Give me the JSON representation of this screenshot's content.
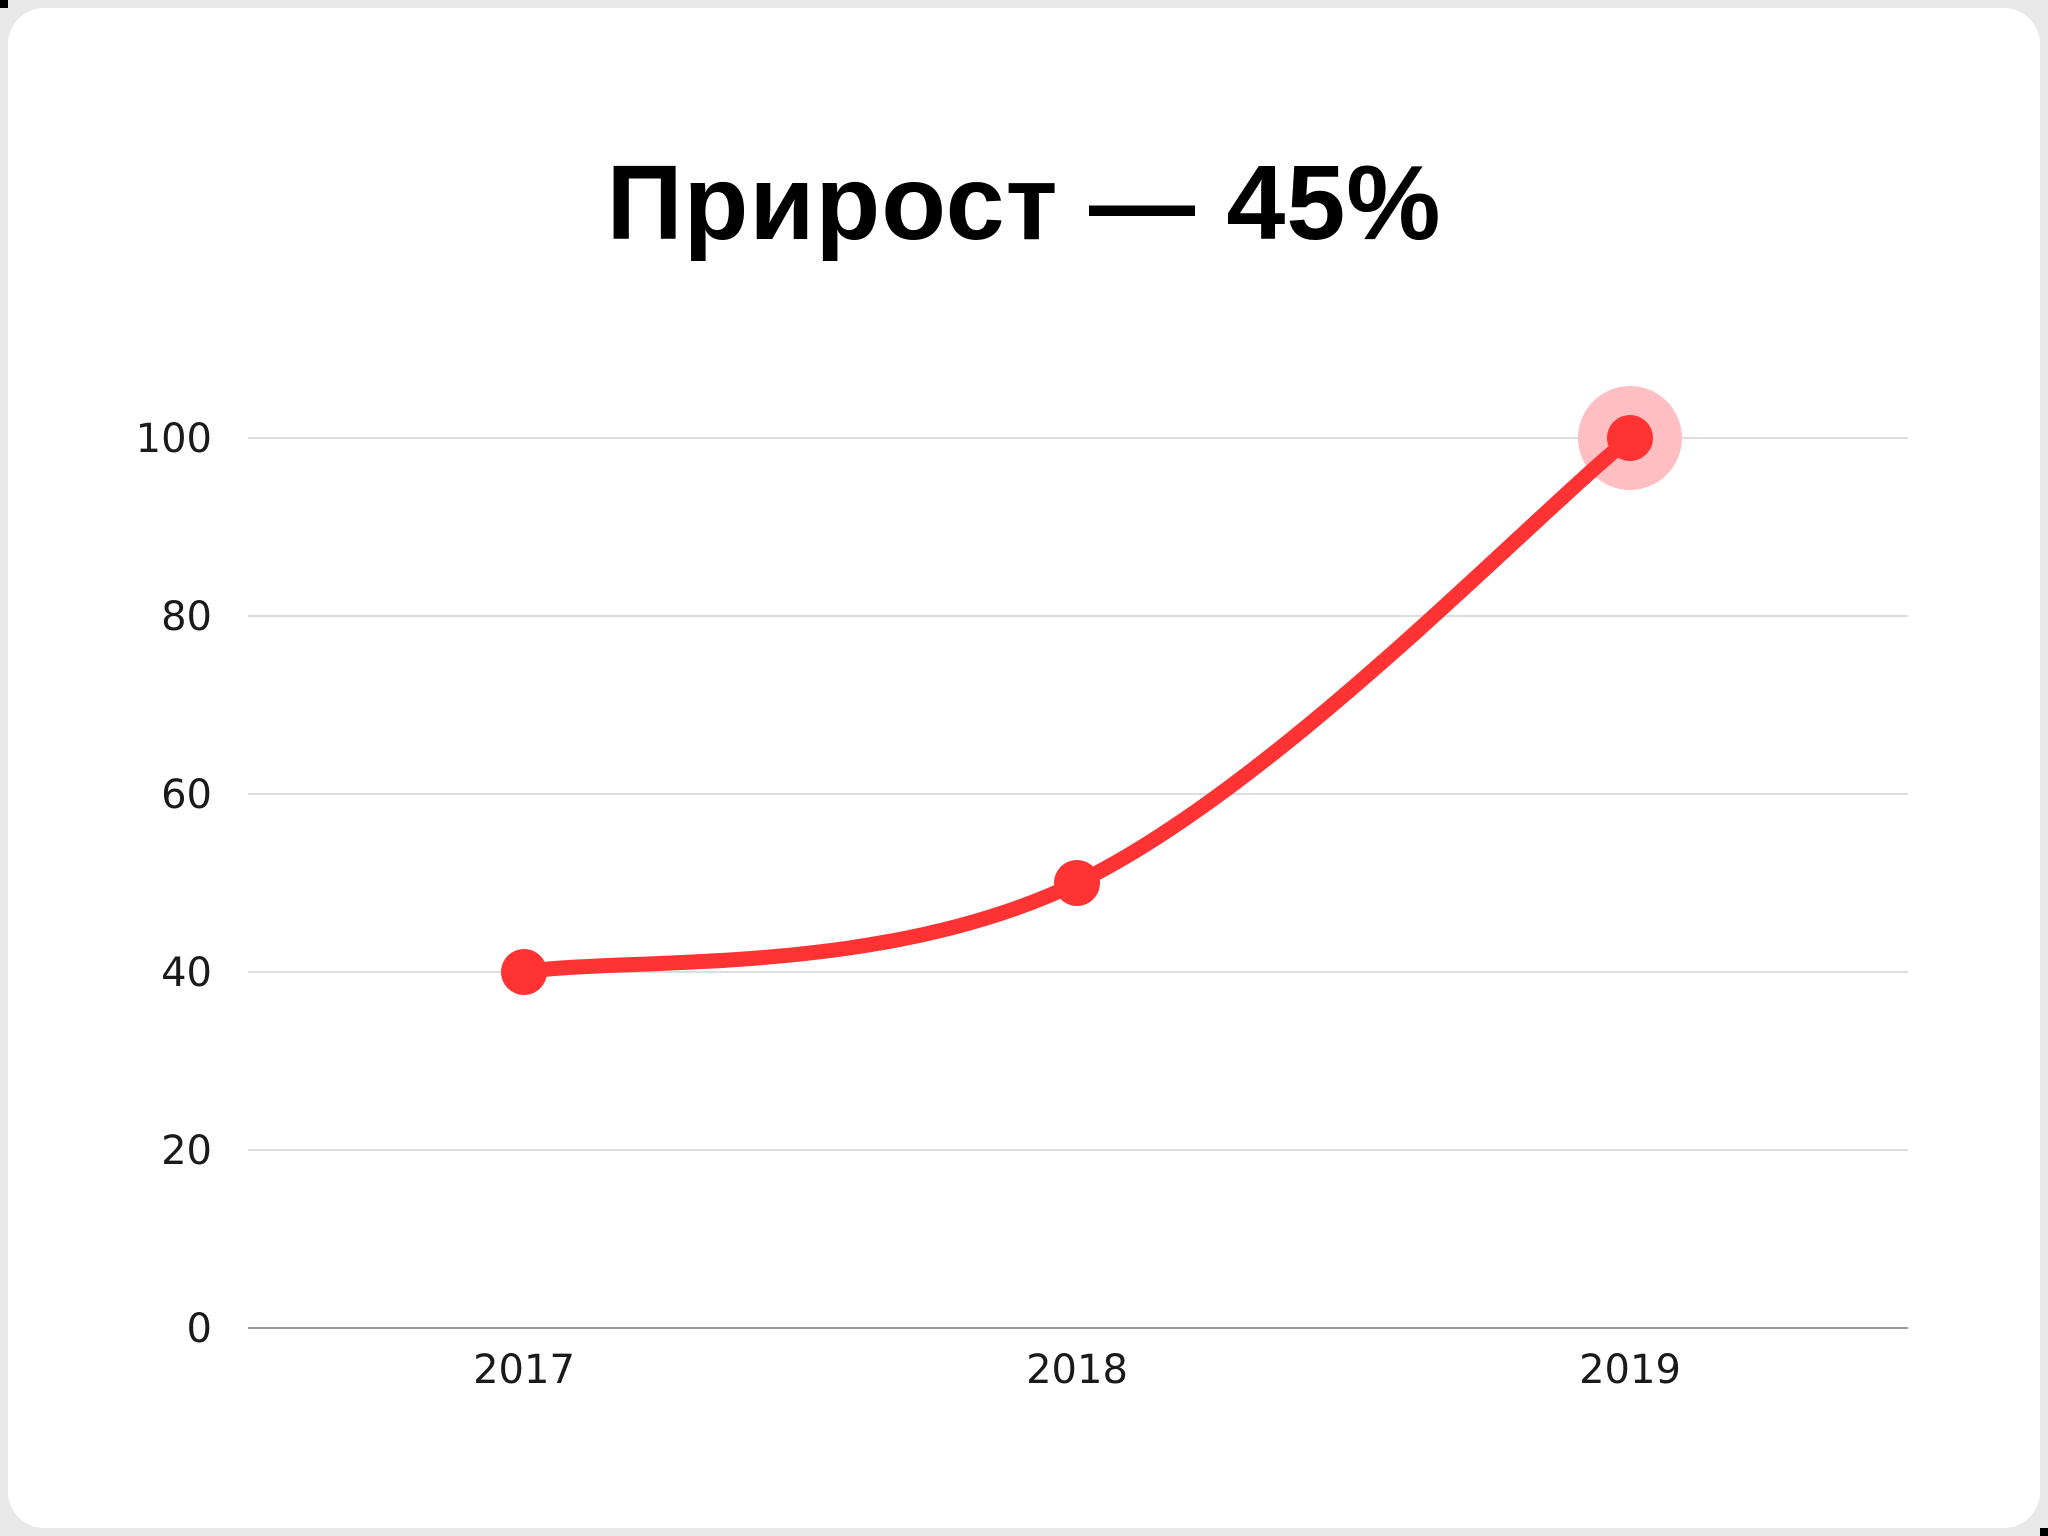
{
  "title": "Прирост — 45%",
  "colors": {
    "line": "#ff3333",
    "highlight_halo": "#ffbfc2",
    "gridline": "#dddddd",
    "baseline": "#999999",
    "background": "#e8e8e8",
    "card": "#ffffff"
  },
  "y_ticks": [
    "0",
    "20",
    "40",
    "60",
    "80",
    "100"
  ],
  "x_ticks": [
    "2017",
    "2018",
    "2019"
  ],
  "chart_data": {
    "type": "line",
    "title": "Прирост — 45%",
    "categories": [
      "2017",
      "2018",
      "2019"
    ],
    "series": [
      {
        "name": "Прирост",
        "values": [
          40,
          50,
          100
        ]
      }
    ],
    "xlabel": "",
    "ylabel": "",
    "ylim": [
      0,
      100
    ],
    "yticks": [
      0,
      20,
      40,
      60,
      80,
      100
    ],
    "grid": true,
    "legend": "none",
    "highlighted_point": {
      "category": "2019",
      "value": 100
    },
    "smooth": true
  }
}
